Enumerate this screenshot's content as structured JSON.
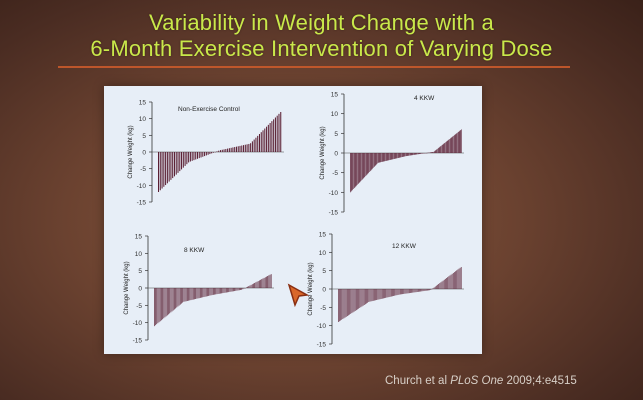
{
  "slide": {
    "title_line1": "Variability in Weight Change with a",
    "title_line2": "6-Month Exercise Intervention of Varying Dose",
    "citation_prefix": "Church et al ",
    "citation_journal": "PLoS One",
    "citation_suffix": " 2009;4:e4515",
    "accent_color": "#c9e84a",
    "rule_color": "#c95a2b",
    "panel_color": "#e7eef7",
    "bar_color": "#5a1f33"
  },
  "chart_data": [
    {
      "type": "bar",
      "title": "Non-Exercise Control",
      "ylabel": "Change Weight (kg)",
      "ylim": [
        -15,
        15
      ],
      "yticks": [
        "15",
        "10",
        "5",
        "0",
        "-5",
        "-10",
        "-15"
      ],
      "n": 70,
      "values_sorted": {
        "min": -12,
        "q1": -3,
        "median": 0.5,
        "q3": 2.5,
        "max": 12
      }
    },
    {
      "type": "bar",
      "title": "4 KKW",
      "ylabel": "Change Weight (kg)",
      "ylim": [
        -15,
        15
      ],
      "yticks": [
        "15",
        "10",
        "5",
        "0",
        "-5",
        "-10",
        "-15"
      ],
      "n": 140,
      "values_sorted": {
        "min": -10,
        "q1": -2.5,
        "median": -0.8,
        "q3": 0.3,
        "max": 6
      }
    },
    {
      "type": "bar",
      "title": "8 KKW",
      "ylabel": "Change Weight (kg)",
      "ylim": [
        -15,
        15
      ],
      "yticks": [
        "15",
        "10",
        "5",
        "0",
        "-5",
        "-10",
        "-15"
      ],
      "n": 100,
      "values_sorted": {
        "min": -11,
        "q1": -4,
        "median": -2,
        "q3": -0.5,
        "max": 4
      }
    },
    {
      "type": "bar",
      "title": "12 KKW",
      "ylabel": "Change Weight (kg)",
      "ylim": [
        -15,
        15
      ],
      "yticks": [
        "15",
        "10",
        "5",
        "0",
        "-5",
        "-10",
        "-15"
      ],
      "n": 110,
      "values_sorted": {
        "min": -9,
        "q1": -3.5,
        "median": -1.5,
        "q3": -0.3,
        "max": 6
      }
    }
  ]
}
